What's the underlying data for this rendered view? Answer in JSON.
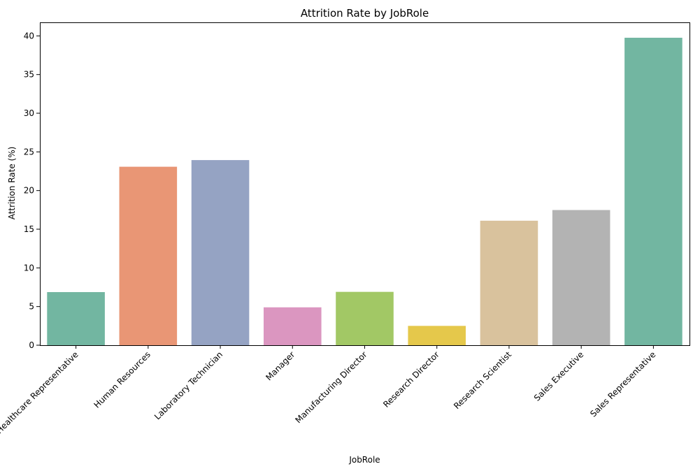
{
  "chart_data": {
    "type": "bar",
    "title": "Attrition Rate by JobRole",
    "xlabel": "JobRole",
    "ylabel": "Attrition Rate (%)",
    "categories": [
      "Healthcare Representative",
      "Human Resources",
      "Laboratory Technician",
      "Manager",
      "Manufacturing Director",
      "Research Director",
      "Research Scientist",
      "Sales Executive",
      "Sales Representative"
    ],
    "values": [
      6.87,
      23.08,
      23.94,
      4.9,
      6.9,
      2.5,
      16.1,
      17.48,
      39.76
    ],
    "colors": [
      "#72b6a1",
      "#e99675",
      "#95a3c3",
      "#db96c0",
      "#a2c865",
      "#e5c84b",
      "#d9c29d",
      "#b3b3b3",
      "#72b6a1"
    ],
    "ylim": [
      0,
      41.75
    ],
    "yticks": [
      0,
      5,
      10,
      15,
      20,
      25,
      30,
      35,
      40
    ],
    "grid": false,
    "legend": "none"
  }
}
